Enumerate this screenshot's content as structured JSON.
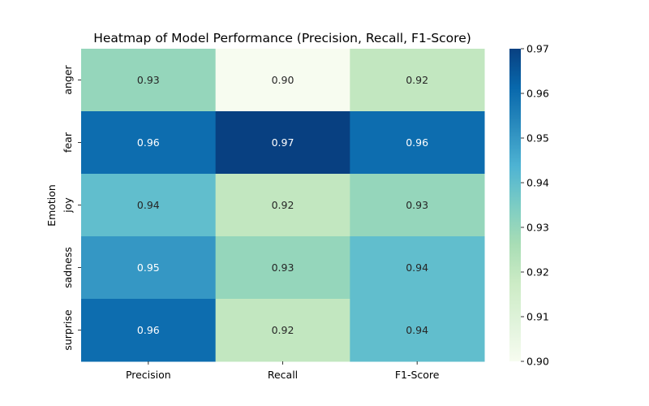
{
  "chart_data": {
    "type": "heatmap",
    "title": "Heatmap of Model Performance (Precision, Recall, F1-Score)",
    "xlabel": "",
    "ylabel": "Emotion",
    "columns": [
      "Precision",
      "Recall",
      "F1-Score"
    ],
    "rows": [
      "anger",
      "fear",
      "joy",
      "sadness",
      "surprise"
    ],
    "values": [
      [
        0.93,
        0.9,
        0.92
      ],
      [
        0.96,
        0.97,
        0.96
      ],
      [
        0.94,
        0.92,
        0.93
      ],
      [
        0.95,
        0.93,
        0.94
      ],
      [
        0.96,
        0.92,
        0.94
      ]
    ],
    "value_format": "0.00",
    "colormap": "GnBu",
    "colorbar": {
      "range": [
        0.9,
        0.97
      ],
      "ticks": [
        "0.90",
        "0.91",
        "0.92",
        "0.93",
        "0.94",
        "0.95",
        "0.96",
        "0.97"
      ]
    },
    "grid": false
  }
}
